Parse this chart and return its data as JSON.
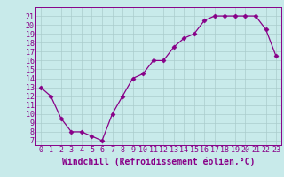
{
  "x": [
    0,
    1,
    2,
    3,
    4,
    5,
    6,
    7,
    8,
    9,
    10,
    11,
    12,
    13,
    14,
    15,
    16,
    17,
    18,
    19,
    20,
    21,
    22,
    23
  ],
  "y": [
    13,
    12,
    9.5,
    8,
    8,
    7.5,
    7,
    10,
    12,
    14,
    14.5,
    16,
    16,
    17.5,
    18.5,
    19,
    20.5,
    21,
    21,
    21,
    21,
    21,
    19.5,
    16.5
  ],
  "line_color": "#880088",
  "marker": "D",
  "marker_size": 2.5,
  "bg_color": "#c8eaea",
  "grid_color": "#aacccc",
  "xlabel": "Windchill (Refroidissement éolien,°C)",
  "xlabel_fontsize": 7,
  "tick_fontsize": 6,
  "xlim": [
    -0.5,
    23.5
  ],
  "ylim": [
    6.5,
    22.0
  ],
  "yticks": [
    7,
    8,
    9,
    10,
    11,
    12,
    13,
    14,
    15,
    16,
    17,
    18,
    19,
    20,
    21
  ],
  "xticks": [
    0,
    1,
    2,
    3,
    4,
    5,
    6,
    7,
    8,
    9,
    10,
    11,
    12,
    13,
    14,
    15,
    16,
    17,
    18,
    19,
    20,
    21,
    22,
    23
  ]
}
